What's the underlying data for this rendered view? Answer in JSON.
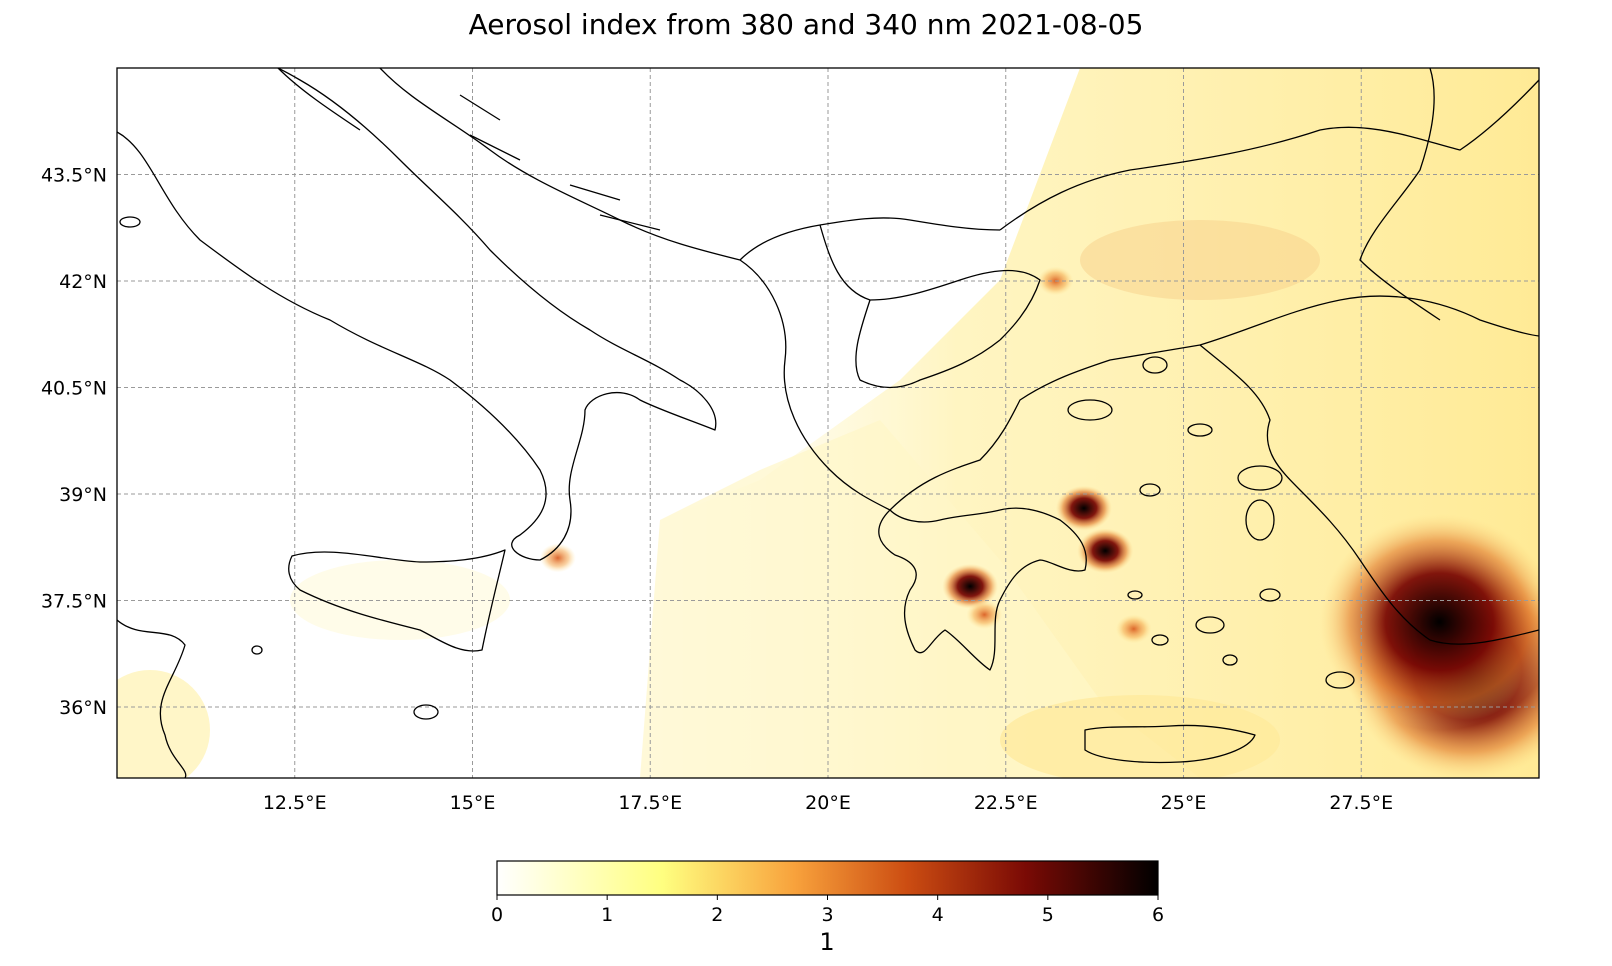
{
  "title": "Aerosol index from 380 and 340 nm 2021-08-05",
  "map": {
    "lon_range": [
      10.0,
      30.0
    ],
    "lat_range": [
      35.0,
      45.0
    ],
    "gridlines": true,
    "gridline_style": "dashed",
    "lon_ticks": [
      {
        "value": 12.5,
        "label": "12.5°E"
      },
      {
        "value": 15,
        "label": "15°E"
      },
      {
        "value": 17.5,
        "label": "17.5°E"
      },
      {
        "value": 20,
        "label": "20°E"
      },
      {
        "value": 22.5,
        "label": "22.5°E"
      },
      {
        "value": 25,
        "label": "25°E"
      },
      {
        "value": 27.5,
        "label": "27.5°E"
      }
    ],
    "lat_ticks": [
      {
        "value": 43.5,
        "label": "43.5°N"
      },
      {
        "value": 42,
        "label": "42°N"
      },
      {
        "value": 40.5,
        "label": "40.5°N"
      },
      {
        "value": 39,
        "label": "39°N"
      },
      {
        "value": 37.5,
        "label": "37.5°N"
      },
      {
        "value": 36,
        "label": "36°N"
      }
    ],
    "hotspots": [
      {
        "lon": 29.0,
        "lat": 36.5,
        "value": 6.0
      },
      {
        "lon": 28.6,
        "lat": 37.2,
        "value": 5.6
      },
      {
        "lon": 22.0,
        "lat": 37.7,
        "value": 5.4
      },
      {
        "lon": 23.9,
        "lat": 38.2,
        "value": 5.2
      },
      {
        "lon": 23.6,
        "lat": 38.8,
        "value": 4.6
      },
      {
        "lon": 16.2,
        "lat": 38.1,
        "value": 3.6
      },
      {
        "lon": 23.2,
        "lat": 42.0,
        "value": 3.0
      },
      {
        "lon": 24.3,
        "lat": 37.1,
        "value": 3.0
      },
      {
        "lon": 22.2,
        "lat": 37.3,
        "value": 3.6
      }
    ]
  },
  "colorbar": {
    "min": 0,
    "max": 6,
    "ticks": [
      "0",
      "1",
      "2",
      "3",
      "4",
      "5",
      "6"
    ],
    "unit_label": "1",
    "colormap": [
      "#ffffff",
      "#ffff80",
      "#f8a23c",
      "#cc4d12",
      "#7a0a05",
      "#000000"
    ]
  }
}
